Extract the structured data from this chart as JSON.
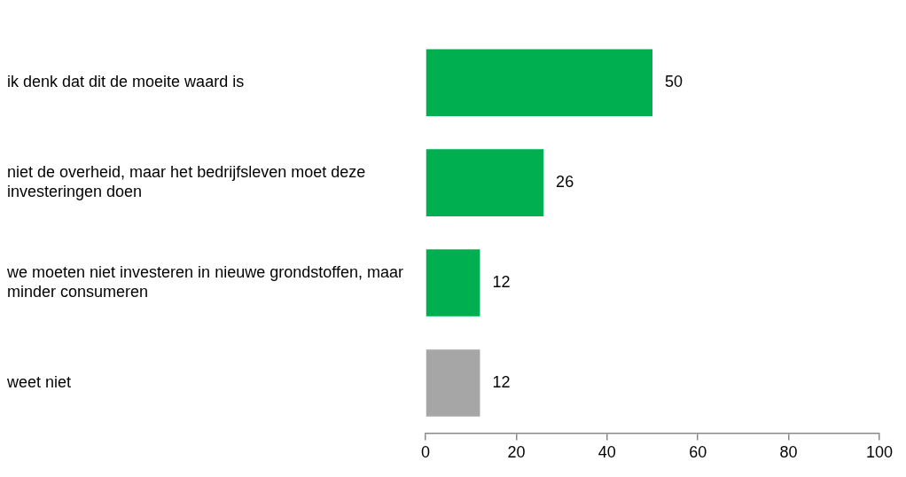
{
  "chart_data": {
    "type": "bar",
    "orientation": "horizontal",
    "categories": [
      "ik denk dat dit de moeite waard is",
      "niet de overheid, maar het bedrijfsleven moet deze investeringen doen",
      "we moeten niet investeren in nieuwe grondstoffen, maar minder consumeren",
      "weet niet"
    ],
    "values": [
      50,
      26,
      12,
      12
    ],
    "colors": [
      "#00b050",
      "#00b050",
      "#00b050",
      "#a6a6a6"
    ],
    "xlim": [
      0,
      100
    ],
    "xticks": [
      0,
      20,
      40,
      60,
      80,
      100
    ],
    "data_labels": true,
    "legend": false
  }
}
